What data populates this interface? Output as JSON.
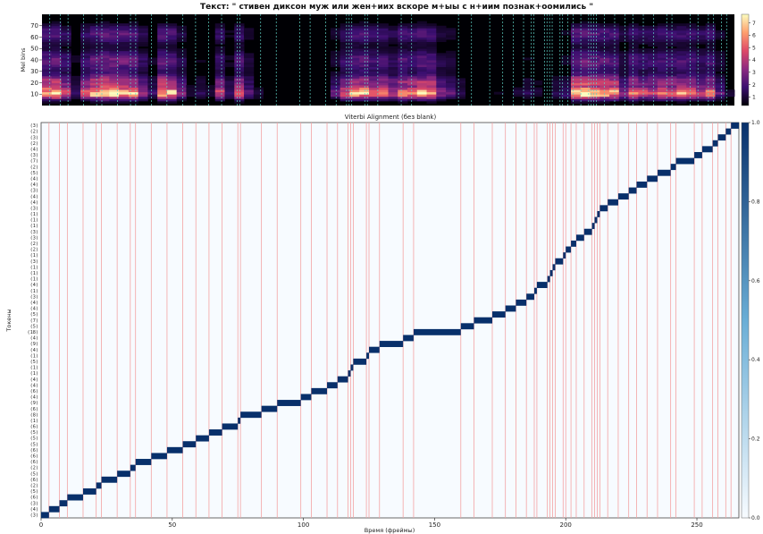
{
  "chart_data": [
    {
      "type": "heatmap",
      "name": "mel-spectrogram",
      "title": "Текст: \" стивен диксон  муж или жен+иих вскоре м+ыы с н+иим познак+оомились \"",
      "ylabel": "Mel bins",
      "ylim": [
        0,
        80
      ],
      "y_ticks": [
        10,
        20,
        30,
        40,
        50,
        60,
        70
      ],
      "colorbar_ticks": [
        1,
        2,
        3,
        4,
        5,
        6,
        7
      ],
      "colormap": [
        "#000004",
        "#3b0f70",
        "#8c2981",
        "#de4968",
        "#fe9f6d",
        "#fcfdbf"
      ],
      "boundary_line_color": "#5fd3c8",
      "energy_profile": [
        0.85,
        0.9,
        0.6,
        0.2,
        0.6,
        0.9,
        1.0,
        1.0,
        0.95,
        0.9,
        0.5,
        0.2,
        0.9,
        0.85,
        0.4,
        0.1,
        0.15,
        0.1,
        0.6,
        0.2,
        0.7,
        0.3,
        0.1,
        0.05,
        0.05,
        0.05,
        0.05,
        0.05,
        0.05,
        0.05,
        0.3,
        0.6,
        0.8,
        0.85,
        0.7,
        0.7,
        0.5,
        0.75,
        0.7,
        0.85,
        0.8,
        0.4,
        0.3,
        0.15,
        0.05,
        0.05,
        0.05,
        0.05,
        0.05,
        0.1,
        0.15,
        0.1,
        0.05,
        0.15,
        0.2,
        0.95,
        1.0,
        0.9,
        0.85,
        0.8,
        0.4,
        0.7,
        0.6,
        0.6,
        0.7,
        0.65,
        0.75,
        0.7,
        0.55,
        0.7,
        0.3,
        0.1
      ]
    },
    {
      "type": "heatmap",
      "name": "viterbi-alignment",
      "title": "Viterbi Alignment (без blank)",
      "xlabel": "Время (фреймы)",
      "ylabel": "Токены",
      "xlim": [
        0,
        266
      ],
      "x_ticks": [
        0,
        50,
        100,
        150,
        200,
        250
      ],
      "colorbar_ticks": [
        "0.0",
        "0.2",
        "0.4",
        "0.6",
        "0.8",
        "1.0"
      ],
      "colorbar_range": [
        0.0,
        1.0
      ],
      "cell_color": "#08306b",
      "background_color": "#f7fbff",
      "boundary_line_color": "#f4a3a3",
      "token_labels": [
        "(3)",
        "(4)",
        "(3)",
        "(6)",
        "(5)",
        "(2)",
        "(6)",
        "(5)",
        "(2)",
        "(6)",
        "(6)",
        "(6)",
        "(5)",
        "(5)",
        "(5)",
        "(6)",
        "(1)",
        "(8)",
        "(6)",
        "(9)",
        "(4)",
        "(6)",
        "(4)",
        "(4)",
        "(1)",
        "(1)",
        "(5)",
        "(1)",
        "(4)",
        "(9)",
        "(4)",
        "(18)",
        "(5)",
        "(7)",
        "(5)",
        "(4)",
        "(4)",
        "(3)",
        "(1)",
        "(4)",
        "(1)",
        "(1)",
        "(1)",
        "(3)",
        "(1)",
        "(2)",
        "(2)",
        "(3)",
        "(3)",
        "(1)",
        "(1)",
        "(1)",
        "(3)",
        "(4)",
        "(4)",
        "(3)",
        "(4)",
        "(4)",
        "(5)",
        "(2)",
        "(7)",
        "(3)",
        "(4)",
        "(2)",
        "(3)",
        "(2)",
        "(3)"
      ],
      "token_durations": [
        3,
        4,
        3,
        6,
        5,
        2,
        6,
        5,
        2,
        6,
        6,
        6,
        5,
        5,
        5,
        6,
        1,
        8,
        6,
        9,
        4,
        6,
        4,
        4,
        1,
        1,
        5,
        1,
        4,
        9,
        4,
        18,
        5,
        7,
        5,
        4,
        4,
        3,
        1,
        4,
        1,
        1,
        1,
        3,
        1,
        2,
        2,
        3,
        3,
        1,
        1,
        1,
        3,
        4,
        4,
        3,
        4,
        4,
        5,
        2,
        7,
        3,
        4,
        2,
        3,
        2,
        3
      ]
    }
  ]
}
